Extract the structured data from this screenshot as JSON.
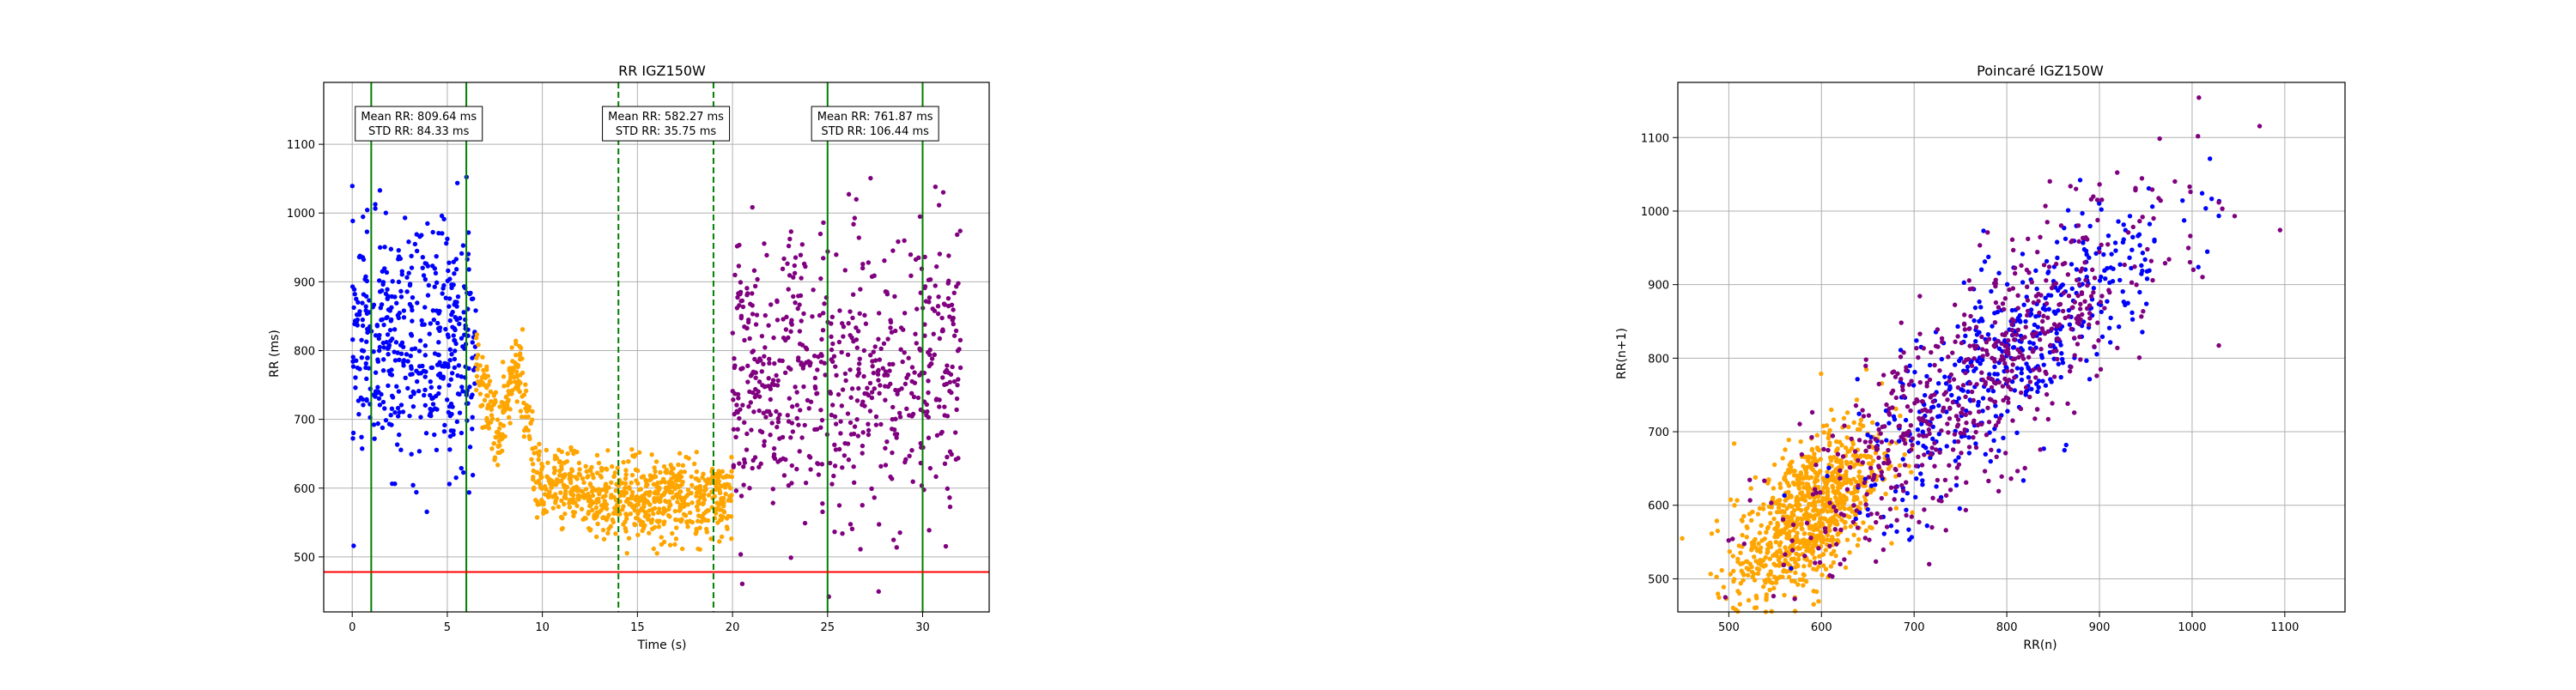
{
  "chart_data": [
    {
      "type": "scatter",
      "title": "RR IGZ150W",
      "xlabel": "Time (s)",
      "ylabel": "RR (ms)",
      "xlim": [
        -1.5,
        33.5
      ],
      "ylim": [
        420,
        1190
      ],
      "xticks": [
        0,
        5,
        10,
        15,
        20,
        25,
        30
      ],
      "yticks": [
        500,
        600,
        700,
        800,
        900,
        1000,
        1100
      ],
      "grid": true,
      "hline": {
        "y": 478,
        "color": "#ff0000"
      },
      "vlines": [
        {
          "x": 1.0,
          "color": "#008000",
          "style": "solid"
        },
        {
          "x": 6.0,
          "color": "#008000",
          "style": "solid"
        },
        {
          "x": 14.0,
          "color": "#008000",
          "style": "dashed"
        },
        {
          "x": 19.0,
          "color": "#008000",
          "style": "dashed"
        },
        {
          "x": 25.0,
          "color": "#008000",
          "style": "solid"
        },
        {
          "x": 30.0,
          "color": "#008000",
          "style": "solid"
        }
      ],
      "annotations": [
        {
          "x": 3.5,
          "y": 1130,
          "lines": [
            "Mean RR: 809.64 ms",
            "STD RR: 84.33 ms"
          ]
        },
        {
          "x": 16.5,
          "y": 1130,
          "lines": [
            "Mean RR: 582.27 ms",
            "STD RR: 35.75 ms"
          ]
        },
        {
          "x": 27.5,
          "y": 1130,
          "lines": [
            "Mean RR: 761.87 ms",
            "STD RR: 106.44 ms"
          ]
        }
      ],
      "series": [
        {
          "color": "#0000ff",
          "x_range": [
            0.0,
            6.5
          ],
          "y_mean": 809.64,
          "y_std": 84.33,
          "count": 480
        },
        {
          "color": "#ffa500",
          "x_range": [
            6.5,
            20.0
          ],
          "y_mean": 582.27,
          "y_std": 35.75,
          "count": 900
        },
        {
          "color": "#800080",
          "x_range": [
            20.0,
            32.0
          ],
          "y_mean": 761.87,
          "y_std": 106.44,
          "count": 640
        }
      ]
    },
    {
      "type": "scatter",
      "title": "Poincaré IGZ150W",
      "xlabel": "RR(n)",
      "ylabel": "RR(n+1)",
      "xlim": [
        445,
        1165
      ],
      "ylim": [
        455,
        1175
      ],
      "xticks": [
        500,
        600,
        700,
        800,
        900,
        1000,
        1100
      ],
      "yticks": [
        500,
        600,
        700,
        800,
        900,
        1000,
        1100
      ],
      "grid": true,
      "series": [
        {
          "color": "#ffa500",
          "center": [
            585,
            585
          ],
          "spread": [
            40,
            50
          ],
          "count": 900
        },
        {
          "color": "#0000ff",
          "center": [
            810,
            810
          ],
          "spread": [
            85,
            60
          ],
          "count": 480
        },
        {
          "color": "#800080",
          "center": [
            760,
            760
          ],
          "spread": [
            105,
            70
          ],
          "count": 640
        }
      ]
    }
  ]
}
